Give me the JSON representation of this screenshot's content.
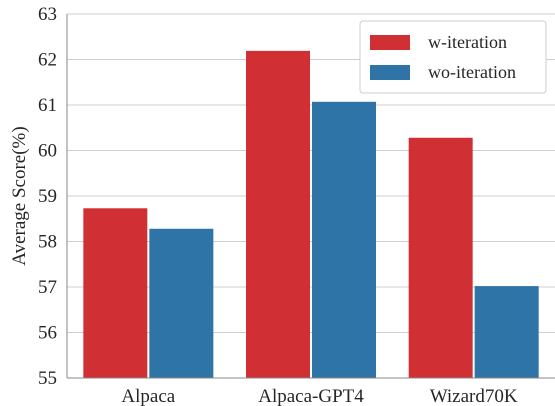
{
  "chart_data": {
    "type": "bar",
    "categories": [
      "Alpaca",
      "Alpaca-GPT4",
      "Wizard70K"
    ],
    "series": [
      {
        "name": "w-iteration",
        "values": [
          58.73,
          62.19,
          60.28
        ],
        "color": "#d03034"
      },
      {
        "name": "wo-iteration",
        "values": [
          58.28,
          61.07,
          57.02
        ],
        "color": "#2f74a6"
      }
    ],
    "xlabel": "",
    "ylabel": "Average Score(%)",
    "ylim": [
      55,
      63
    ],
    "yticks": [
      "55",
      "56",
      "57",
      "58",
      "59",
      "60",
      "61",
      "62",
      "63"
    ],
    "grid": "horizontal",
    "legend_position": "top-right"
  }
}
